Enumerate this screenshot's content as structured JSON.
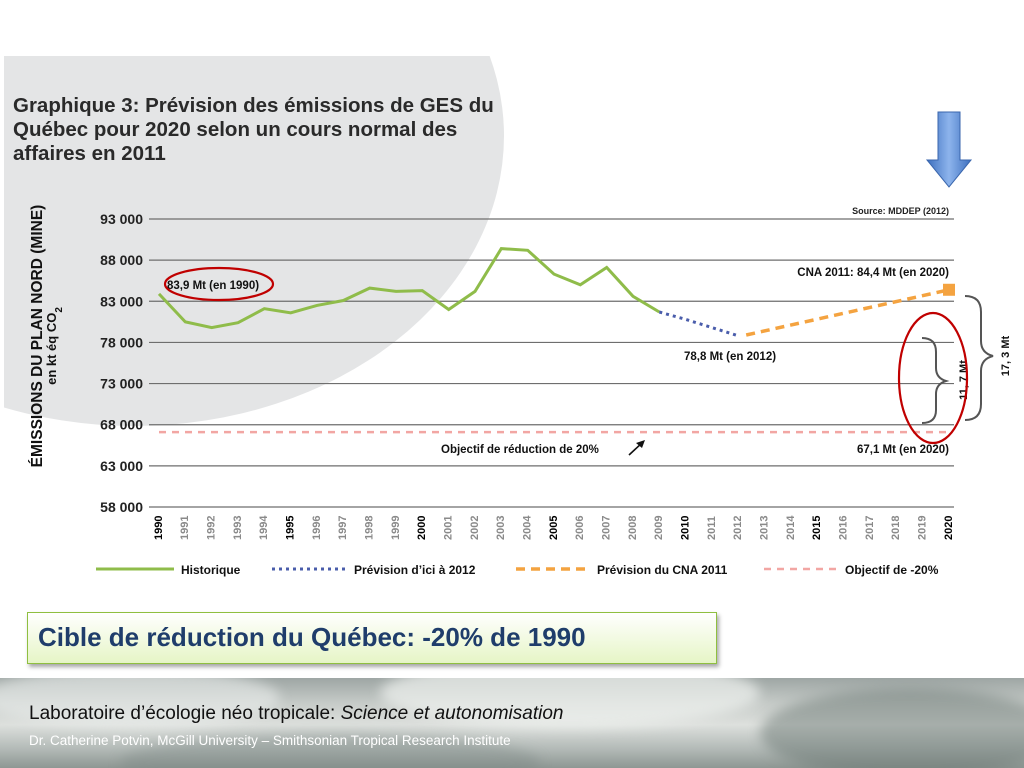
{
  "slide": {
    "chart_title": "Graphique 3: Prévision des émissions de GES du Québec pour 2020 selon un cours normal des affaires en 2011",
    "target_text": "Cible de réduction du Québec: -20% de 1990",
    "footer": {
      "line1_prefix": "Laboratoire d’écologie néo tropicale: ",
      "line1_italic": "Science et autonomisation",
      "line2": "Dr. Catherine Potvin, McGill University – Smithsonian Tropical Research Institute"
    }
  },
  "colors": {
    "historique": "#8fbc4a",
    "prevision_2012": "#4a5dab",
    "prevision_cna": "#f4a340",
    "objectif": "#f2a6a3",
    "highlight_ellipse": "#c00000",
    "arrow": "#4f86d4",
    "target_text": "#1f3d6b"
  },
  "chart_data": {
    "type": "line",
    "source": "Source: MDDEP (2012)",
    "ylabel_line1": "ÉMISSIONS DU PLAN NORD (MINE)",
    "ylabel_line2": "en kt éq CO",
    "ylabel_sub": "2",
    "yticks": [
      58000,
      63000,
      68000,
      73000,
      78000,
      83000,
      88000,
      93000
    ],
    "ytick_labels": [
      "58 000",
      "63 000",
      "68 000",
      "73 000",
      "78 000",
      "83 000",
      "88 000",
      "93 000"
    ],
    "ylim": [
      58000,
      93000
    ],
    "x": [
      "1990",
      "1991",
      "1992",
      "1993",
      "1994",
      "1995",
      "1996",
      "1997",
      "1998",
      "1999",
      "2000",
      "2001",
      "2002",
      "2003",
      "2004",
      "2005",
      "2006",
      "2007",
      "2008",
      "2009",
      "2010",
      "2011",
      "2012",
      "2013",
      "2014",
      "2015",
      "2016",
      "2017",
      "2018",
      "2019",
      "2020"
    ],
    "bold_years": [
      "1990",
      "1995",
      "2000",
      "2005",
      "2010",
      "2015",
      "2020"
    ],
    "grid": "horizontal",
    "legend_position": "bottom",
    "series": [
      {
        "name": "Historique",
        "style": "solid",
        "points": [
          [
            1990,
            83900
          ],
          [
            1991,
            80500
          ],
          [
            1992,
            79800
          ],
          [
            1993,
            80400
          ],
          [
            1994,
            82100
          ],
          [
            1995,
            81600
          ],
          [
            1996,
            82500
          ],
          [
            1997,
            83100
          ],
          [
            1998,
            84600
          ],
          [
            1999,
            84200
          ],
          [
            2000,
            84300
          ],
          [
            2001,
            82000
          ],
          [
            2002,
            84200
          ],
          [
            2003,
            89400
          ],
          [
            2004,
            89200
          ],
          [
            2005,
            86300
          ],
          [
            2006,
            85000
          ],
          [
            2007,
            87100
          ],
          [
            2008,
            83600
          ],
          [
            2009,
            81700
          ]
        ]
      },
      {
        "name": "Prévision d’ici à 2012",
        "style": "dotted",
        "points": [
          [
            2009,
            81700
          ],
          [
            2010,
            80800
          ],
          [
            2011,
            79800
          ],
          [
            2012,
            78800
          ]
        ]
      },
      {
        "name": "Prévision du CNA 2011",
        "style": "dashed",
        "points": [
          [
            2012.3,
            78900
          ],
          [
            2020,
            84400
          ]
        ]
      },
      {
        "name": "Objectif de -20%",
        "style": "dashed",
        "points": [
          [
            1990,
            67100
          ],
          [
            2020,
            67100
          ]
        ]
      }
    ],
    "annotations": {
      "a1990": "83,9 Mt (en 1990)",
      "a2012": "78,8 Mt (en 2012)",
      "cna": "CNA 2011: 84,4 Mt (en 2020)",
      "objectif_left": "Objectif de réduction de 20%",
      "objectif_right": "67,1 Mt (en 2020)",
      "gap_small": "11, 7 Mt",
      "gap_large": "17, 3 Mt"
    }
  }
}
